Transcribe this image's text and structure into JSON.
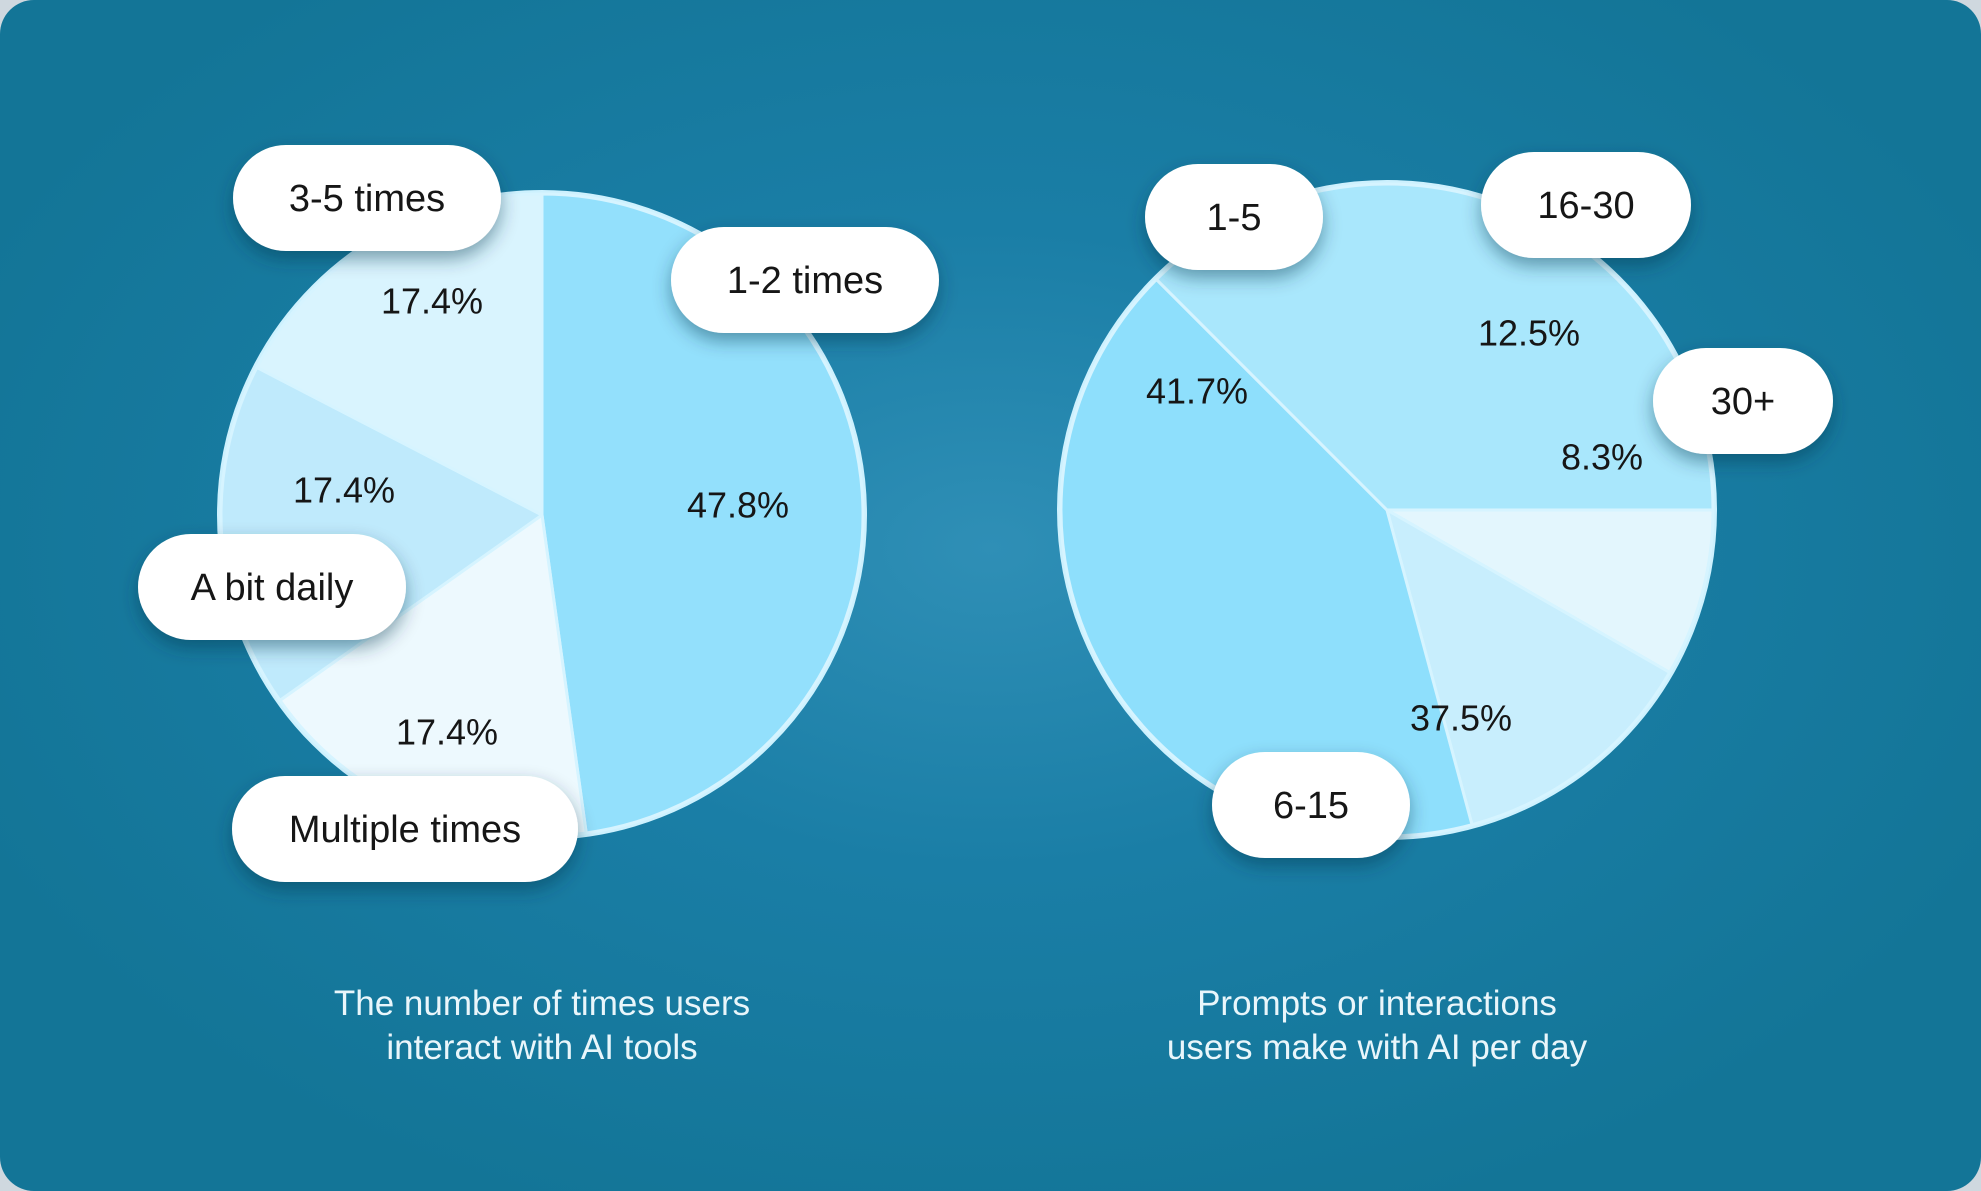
{
  "chart_data": [
    {
      "type": "pie",
      "caption_lines": [
        "The number of times users",
        "interact with AI tools"
      ],
      "slices": [
        {
          "label": "1-2 times",
          "value": 47.8,
          "value_label": "47.8%",
          "color": "#93e0fc"
        },
        {
          "label": "Multiple times",
          "value": 17.4,
          "value_label": "17.4%",
          "color": "#edf9fe"
        },
        {
          "label": "A bit daily",
          "value": 17.4,
          "value_label": "17.4%",
          "color": "#bfeafc"
        },
        {
          "label": "3-5 times",
          "value": 17.4,
          "value_label": "17.4%",
          "color": "#d9f4fe"
        }
      ]
    },
    {
      "type": "pie",
      "caption_lines": [
        "Prompts or interactions",
        "users make with AI per day"
      ],
      "slices": [
        {
          "label": "30+",
          "value": 8.3,
          "value_label": "8.3%",
          "color": "#e3f6fd"
        },
        {
          "label": "16-30",
          "value": 12.5,
          "value_label": "12.5%",
          "color": "#c8eefd"
        },
        {
          "label": "1-5",
          "value": 41.7,
          "value_label": "41.7%",
          "color": "#8edffc"
        },
        {
          "label": "6-15",
          "value": 37.5,
          "value_label": "37.5%",
          "color": "#a9e7fc"
        }
      ]
    }
  ]
}
